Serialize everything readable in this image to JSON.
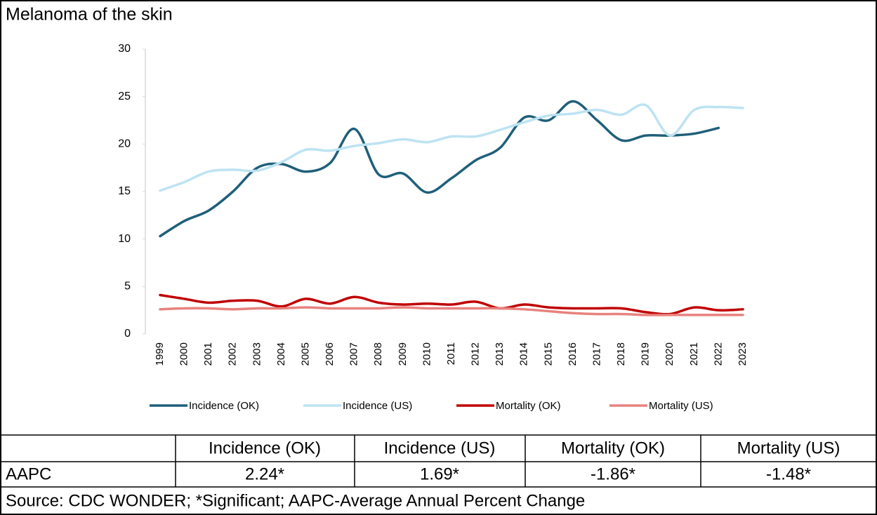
{
  "chart_data": {
    "type": "line",
    "title": "Melanoma of the skin",
    "categories": [
      "1999",
      "2000",
      "2001",
      "2002",
      "2003",
      "2004",
      "2005",
      "2006",
      "2007",
      "2008",
      "2009",
      "2010",
      "2011",
      "2012",
      "2013",
      "2014",
      "2015",
      "2016",
      "2017",
      "2018",
      "2019",
      "2020",
      "2021",
      "2022",
      "2023"
    ],
    "series": [
      {
        "name": "Incidence (OK)",
        "color": "#1f5f7a",
        "values": [
          10.3,
          11.9,
          13.0,
          15.0,
          17.5,
          17.9,
          17.1,
          18.0,
          21.6,
          16.8,
          16.9,
          14.9,
          16.4,
          18.3,
          19.6,
          22.8,
          22.5,
          24.5,
          22.5,
          20.4,
          20.9,
          20.9,
          21.1,
          21.7,
          null
        ]
      },
      {
        "name": "Incidence (US)",
        "color": "#bde3f2",
        "values": [
          15.1,
          16.0,
          17.1,
          17.3,
          17.2,
          18.1,
          19.4,
          19.3,
          19.8,
          20.1,
          20.5,
          20.2,
          20.8,
          20.8,
          21.5,
          22.3,
          23.0,
          23.2,
          23.6,
          23.1,
          24.1,
          20.9,
          23.6,
          23.9,
          23.8
        ]
      },
      {
        "name": "Mortality (OK)",
        "color": "#c00000",
        "values": [
          4.1,
          3.7,
          3.3,
          3.5,
          3.5,
          2.9,
          3.7,
          3.2,
          3.9,
          3.3,
          3.1,
          3.2,
          3.1,
          3.4,
          2.7,
          3.1,
          2.8,
          2.7,
          2.7,
          2.7,
          2.3,
          2.1,
          2.8,
          2.5,
          2.6
        ]
      },
      {
        "name": "Mortality (US)",
        "color": "#e8827e",
        "values": [
          2.6,
          2.7,
          2.7,
          2.6,
          2.7,
          2.7,
          2.8,
          2.7,
          2.7,
          2.7,
          2.8,
          2.7,
          2.7,
          2.7,
          2.7,
          2.6,
          2.4,
          2.2,
          2.1,
          2.1,
          2.0,
          2.0,
          2.0,
          2.0,
          2.0
        ]
      }
    ],
    "ylim": [
      0,
      30
    ],
    "yticks": [
      0,
      5,
      10,
      15,
      20,
      25,
      30
    ],
    "smooth": true,
    "legend": "bottom"
  },
  "table": {
    "columns": [
      "Incidence (OK)",
      "Incidence (US)",
      "Mortality (OK)",
      "Mortality (US)"
    ],
    "rows": [
      {
        "label": "AAPC",
        "values": [
          "2.24*",
          "1.69*",
          "-1.86*",
          "-1.48*"
        ]
      }
    ],
    "footer": "Source: CDC WONDER; *Significant; AAPC-Average Annual Percent Change"
  }
}
